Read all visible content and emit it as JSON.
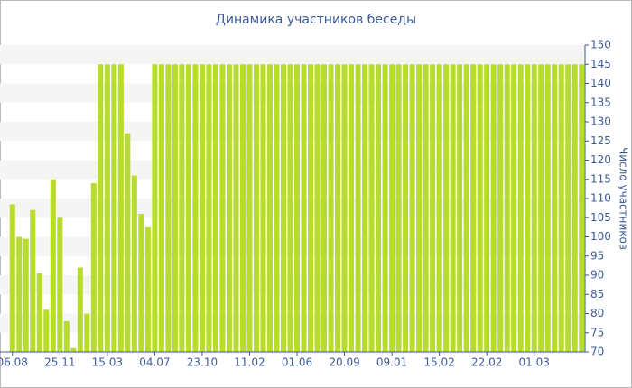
{
  "chart_data": {
    "type": "bar",
    "title": "Динамика участников беседы",
    "y_label": "Число участников",
    "categories": [
      "06.08",
      null,
      null,
      null,
      null,
      null,
      null,
      "25.11",
      null,
      null,
      null,
      null,
      null,
      null,
      "15.03",
      null,
      null,
      null,
      null,
      null,
      null,
      "04.07",
      null,
      null,
      null,
      null,
      null,
      null,
      "23.10",
      null,
      null,
      null,
      null,
      null,
      null,
      "11.02",
      null,
      null,
      null,
      null,
      null,
      null,
      "01.06",
      null,
      null,
      null,
      null,
      null,
      null,
      "20.09",
      null,
      null,
      null,
      null,
      null,
      null,
      "09.01",
      null,
      null,
      null,
      null,
      null,
      null,
      "15.02",
      null,
      null,
      null,
      null,
      null,
      null,
      "22.02",
      null,
      null,
      null,
      null,
      null,
      null,
      "01.03",
      null,
      null,
      null,
      null,
      null,
      null,
      null
    ],
    "values": [
      108.5,
      100,
      99.5,
      107,
      90.5,
      81,
      115,
      105,
      78,
      71,
      92,
      80,
      114,
      145,
      145,
      145,
      145,
      127,
      116,
      106,
      102.5,
      145,
      145,
      145,
      145,
      145,
      145,
      145,
      145,
      145,
      145,
      145,
      145,
      145,
      145,
      145,
      145,
      145,
      145,
      145,
      145,
      145,
      145,
      145,
      145,
      145,
      145,
      145,
      145,
      145,
      145,
      145,
      145,
      145,
      145,
      145,
      145,
      145,
      145,
      145,
      145,
      145,
      145,
      145,
      145,
      145,
      145,
      145,
      145,
      145,
      145,
      145,
      145,
      145,
      145,
      145,
      145,
      145,
      145,
      145,
      145,
      145,
      145,
      145,
      145
    ],
    "color": "#b8dc2c",
    "ylim": [
      70,
      150
    ],
    "yticks": [
      70,
      75,
      80,
      85,
      90,
      95,
      100,
      105,
      110,
      115,
      120,
      125,
      130,
      135,
      140,
      145,
      150
    ],
    "grid": "bands",
    "y_axis_side": "right"
  }
}
